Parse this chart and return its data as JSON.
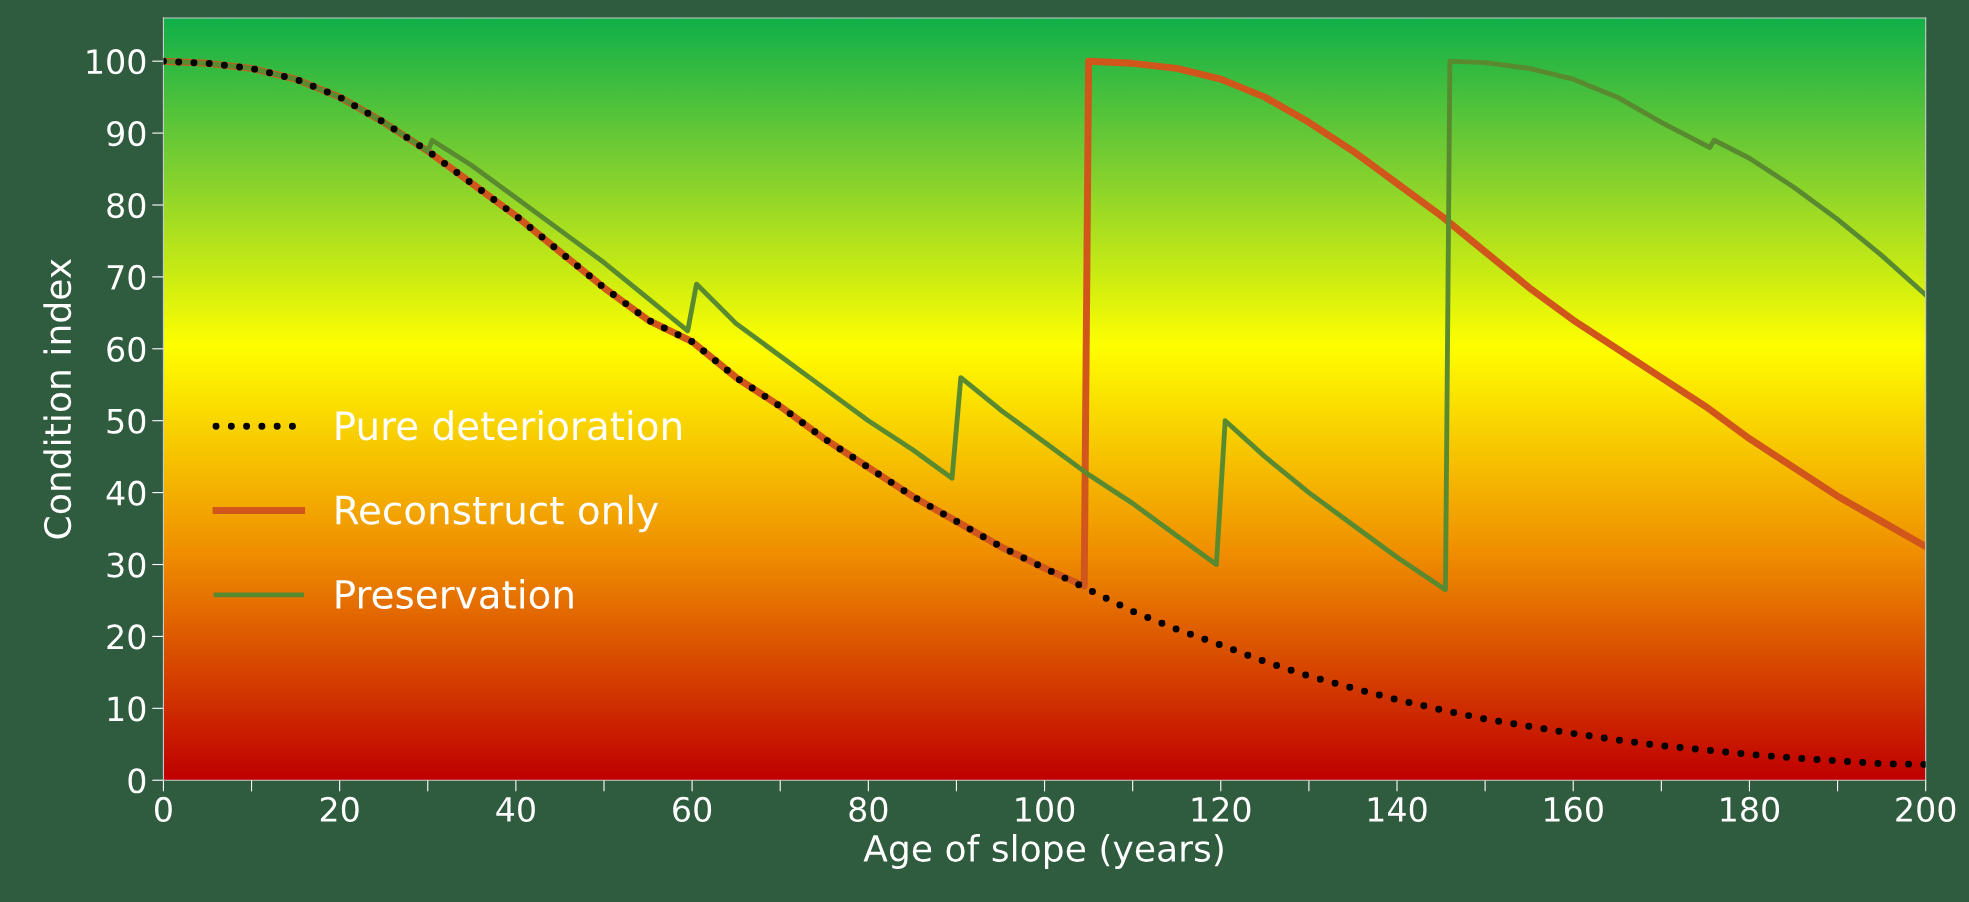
{
  "chart_data": {
    "type": "line",
    "xlabel": "Age of slope (years)",
    "ylabel": "Condition index",
    "xlim": [
      0,
      200
    ],
    "ylim": [
      0,
      106
    ],
    "xticks": [
      0,
      {
        "value": 10,
        "label": null
      },
      20,
      {
        "value": 30,
        "label": null
      },
      40,
      {
        "value": 50,
        "label": null
      },
      60,
      {
        "value": 70,
        "label": null
      },
      80,
      {
        "value": 90,
        "label": null
      },
      100,
      {
        "value": 110,
        "label": null
      },
      120,
      {
        "value": 130,
        "label": null
      },
      140,
      {
        "value": 150,
        "label": null
      },
      160,
      {
        "value": 170,
        "label": null
      },
      180,
      {
        "value": 190,
        "label": null
      },
      200
    ],
    "yticks": [
      0,
      10,
      20,
      30,
      40,
      50,
      60,
      70,
      80,
      90,
      100
    ],
    "grid": false,
    "legend": "left",
    "series": [
      {
        "name": "Pure deterioration",
        "color": "#000000",
        "line_style": "dotted",
        "x": [
          0,
          5,
          10,
          15,
          20,
          25,
          30,
          35,
          40,
          45,
          50,
          55,
          60,
          65,
          70,
          75,
          80,
          85,
          90,
          95,
          100,
          105,
          110,
          115,
          120,
          125,
          130,
          135,
          140,
          145,
          150,
          155,
          160,
          165,
          170,
          175,
          180,
          185,
          190,
          195,
          200
        ],
        "values": [
          100,
          99.7,
          99,
          97.5,
          95,
          91.5,
          87.5,
          83,
          78.5,
          73.5,
          68.5,
          64,
          61,
          56,
          52,
          47.5,
          43.5,
          39.5,
          36,
          32.5,
          29.5,
          26.5,
          23.5,
          21,
          18.8,
          16.5,
          14.5,
          12.8,
          11.2,
          9.8,
          8.5,
          7.5,
          6.5,
          5.6,
          4.8,
          4.2,
          3.6,
          3.1,
          2.7,
          2.3,
          2.2
        ]
      },
      {
        "name": "Reconstruct only",
        "color": "#d0561c",
        "line_style": "solid",
        "x": [
          0,
          5,
          10,
          15,
          20,
          25,
          30,
          35,
          40,
          45,
          50,
          55,
          60,
          65,
          70,
          75,
          80,
          85,
          90,
          95,
          100,
          104.5,
          105,
          110,
          115,
          120,
          125,
          130,
          135,
          140,
          145,
          150,
          155,
          160,
          165,
          170,
          175,
          180,
          185,
          190,
          195,
          200
        ],
        "values": [
          100,
          99.7,
          99,
          97.5,
          95,
          91.5,
          87.5,
          83,
          78.5,
          73.5,
          68.5,
          64,
          61,
          56,
          52,
          47.5,
          43.5,
          39.5,
          36,
          32.5,
          29.5,
          27,
          100,
          99.7,
          99,
          97.5,
          95,
          91.5,
          87.5,
          83,
          78.5,
          73.5,
          68.5,
          64,
          60,
          56,
          52,
          47.5,
          43.5,
          39.5,
          36,
          32.5
        ]
      },
      {
        "name": "Preservation",
        "color": "#5a8a30",
        "line_style": "solid",
        "x": [
          0,
          5,
          10,
          15,
          20,
          25,
          30,
          30.5,
          35,
          40,
          45,
          50,
          55,
          59.5,
          60.5,
          65,
          70,
          75,
          80,
          85,
          89.5,
          90.5,
          95,
          100,
          105,
          110,
          115,
          119.5,
          120.5,
          125,
          130,
          135,
          140,
          145.5,
          146,
          150,
          155,
          160,
          165,
          170,
          175.5,
          176,
          180,
          185,
          190,
          195,
          200
        ],
        "values": [
          100,
          99.7,
          99,
          97.5,
          95,
          91.5,
          87.5,
          89,
          85.5,
          81,
          76.5,
          72,
          67,
          62.5,
          69,
          63.5,
          59,
          54.5,
          50,
          46,
          42,
          56,
          51.5,
          47,
          42.5,
          38.5,
          34,
          30,
          50,
          45,
          40,
          35.5,
          31,
          26.5,
          100,
          99.8,
          99,
          97.5,
          95,
          91.5,
          88,
          89,
          86.5,
          82.5,
          78,
          73,
          67.5
        ]
      }
    ]
  }
}
